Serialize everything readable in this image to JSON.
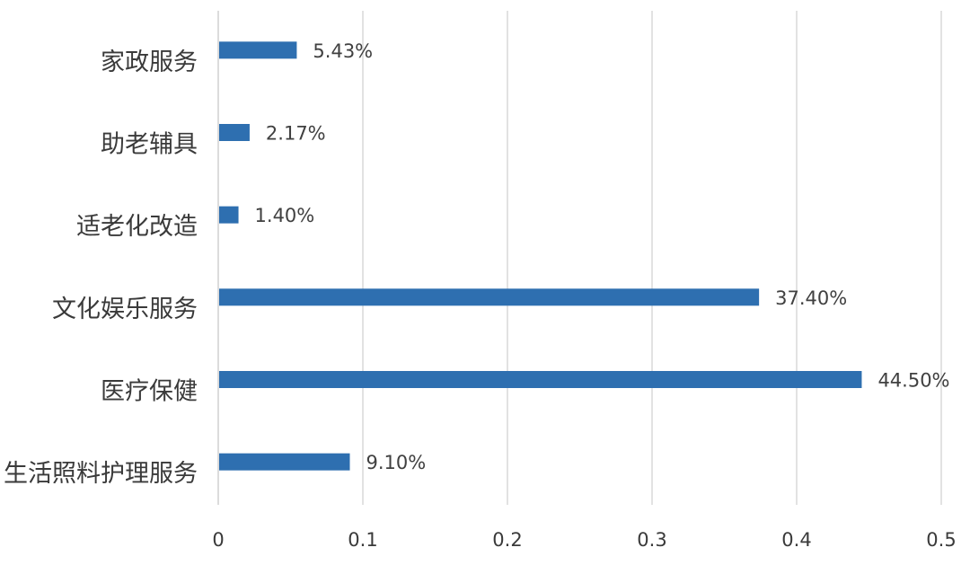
{
  "chart_data": {
    "type": "bar",
    "orientation": "horizontal",
    "categories": [
      "家政服务",
      "助老辅具",
      "适老化改造",
      "文化娱乐服务",
      "医疗保健",
      "生活照料护理服务"
    ],
    "values": [
      0.0543,
      0.0217,
      0.014,
      0.374,
      0.445,
      0.091
    ],
    "data_labels": [
      "5.43%",
      "2.17%",
      "1.40%",
      "37.40%",
      "44.50%",
      "9.10%"
    ],
    "xlim": [
      0,
      0.5
    ],
    "x_ticks": [
      "0",
      "0.1",
      "0.2",
      "0.3",
      "0.4",
      "0.5"
    ],
    "title": "",
    "xlabel": "",
    "ylabel": "",
    "grid": "vertical",
    "legend": "none",
    "bar_color": "#2e6fb0"
  }
}
